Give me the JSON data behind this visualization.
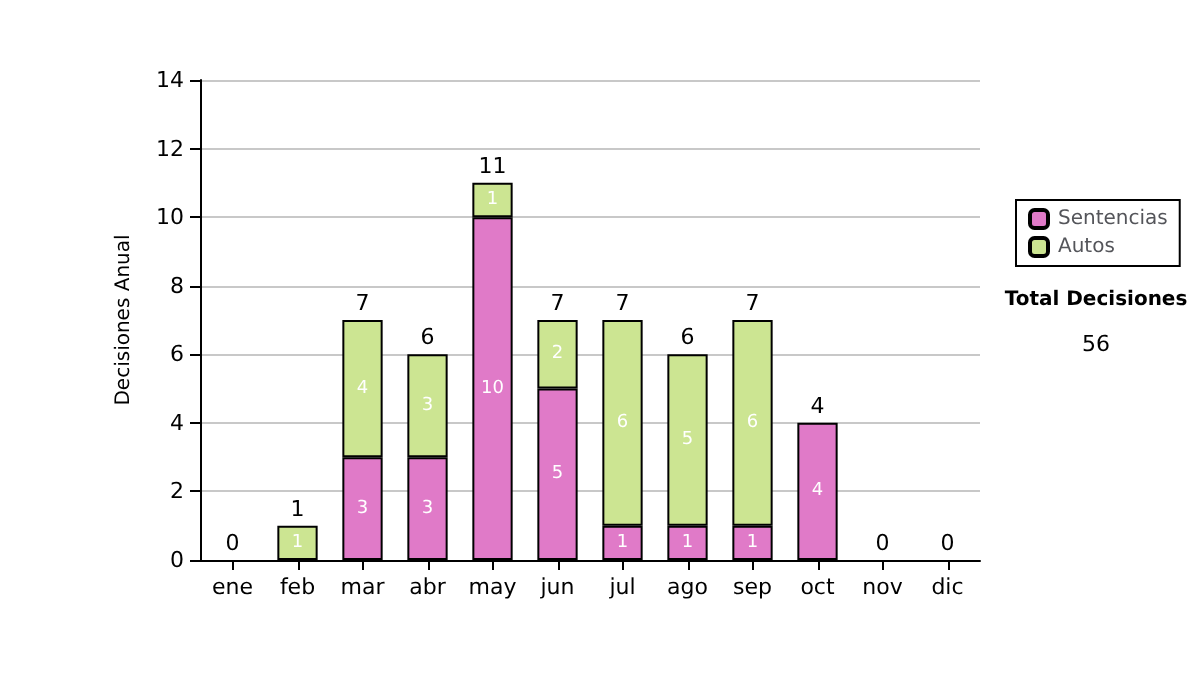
{
  "chart_data": {
    "type": "bar",
    "stacked": true,
    "ylabel": "Decisiones Anual",
    "categories": [
      "ene",
      "feb",
      "mar",
      "abr",
      "may",
      "jun",
      "jul",
      "ago",
      "sep",
      "oct",
      "nov",
      "dic"
    ],
    "series": [
      {
        "name": "Sentencias",
        "color": "#e07ac8",
        "values": [
          0,
          0,
          3,
          3,
          10,
          5,
          1,
          1,
          1,
          4,
          0,
          0
        ],
        "value_labels": [
          null,
          null,
          "3",
          "3",
          "10",
          "5",
          "1",
          "1",
          "1",
          "4",
          null,
          null
        ]
      },
      {
        "name": "Autos",
        "color": "#cce592",
        "values": [
          0,
          1,
          4,
          3,
          1,
          2,
          6,
          5,
          6,
          0,
          0,
          0
        ],
        "value_labels": [
          null,
          "1",
          "4",
          "3",
          "1",
          "2",
          "6",
          "5",
          "6",
          null,
          null,
          null
        ]
      }
    ],
    "totals": [
      "0",
      "1",
      "7",
      "6",
      "11",
      "7",
      "7",
      "6",
      "7",
      "4",
      "0",
      "0"
    ],
    "ylim": [
      0,
      14
    ],
    "yticks": [
      0,
      2,
      4,
      6,
      8,
      10,
      12,
      14
    ],
    "grid": "y",
    "legend": "right",
    "annotations": [
      "Total Decisiones",
      "56"
    ]
  }
}
